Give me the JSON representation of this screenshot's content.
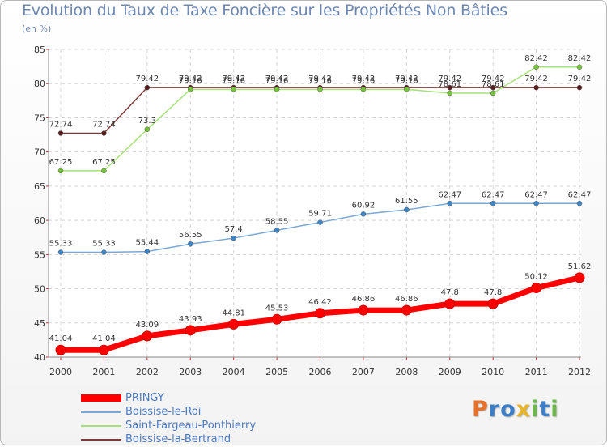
{
  "chart_data": {
    "type": "line",
    "title": "Evolution du Taux de Taxe Foncière sur les Propriétés Non Bâties",
    "ylabel": "(en %)",
    "xlabel": "",
    "categories": [
      "2000",
      "2001",
      "2002",
      "2003",
      "2004",
      "2005",
      "2006",
      "2007",
      "2008",
      "2009",
      "2010",
      "2011",
      "2012"
    ],
    "ylim": [
      40,
      85
    ],
    "yticks": [
      "40",
      "45",
      "50",
      "55",
      "60",
      "65",
      "70",
      "75",
      "80",
      "85"
    ],
    "grid": true,
    "legend_position": "bottom-left",
    "series": [
      {
        "name": "PRINGY",
        "color": "#ff0000",
        "marker_color": "#ff0000",
        "emphasis": true,
        "values": [
          41.04,
          41.04,
          43.09,
          43.93,
          44.81,
          45.53,
          46.42,
          46.86,
          46.86,
          47.8,
          47.8,
          50.12,
          51.62
        ],
        "labels": [
          "41.04",
          "41.04",
          "43.09",
          "43.93",
          "44.81",
          "45.53",
          "46.42",
          "46.86",
          "46.86",
          "47.8",
          "47.8",
          "50.12",
          "51.62"
        ]
      },
      {
        "name": "Boissise-le-Roi",
        "color": "#7aa7d4",
        "marker_color": "#3f86c7",
        "emphasis": false,
        "values": [
          55.33,
          55.33,
          55.44,
          56.55,
          57.4,
          58.55,
          59.71,
          60.92,
          61.55,
          62.47,
          62.47,
          62.47,
          62.47
        ],
        "labels": [
          "55.33",
          "55.33",
          "55.44",
          "56.55",
          "57.4",
          "58.55",
          "59.71",
          "60.92",
          "61.55",
          "62.47",
          "62.47",
          "62.47",
          "62.47"
        ]
      },
      {
        "name": "Saint-Fargeau-Ponthierry",
        "color": "#a6e07a",
        "marker_color": "#76c43a",
        "emphasis": false,
        "values": [
          67.25,
          67.25,
          73.3,
          79.16,
          79.16,
          79.16,
          79.16,
          79.16,
          79.16,
          78.61,
          78.61,
          82.42,
          82.42
        ],
        "labels": [
          "67.25",
          "67.25",
          "73.3",
          "79.16",
          "79.16",
          "79.16",
          "79.16",
          "79.16",
          "79.16",
          "78.61",
          "78.61",
          "82.42",
          "82.42"
        ]
      },
      {
        "name": "Boissise-la-Bertrand",
        "color": "#7a3a3a",
        "marker_color": "#5a1e1e",
        "emphasis": false,
        "values": [
          72.74,
          72.74,
          79.42,
          79.42,
          79.42,
          79.42,
          79.42,
          79.42,
          79.42,
          79.42,
          79.42,
          79.42,
          79.42
        ],
        "labels": [
          "72.74",
          "72.74",
          "79.42",
          "79.42",
          "79.42",
          "79.42",
          "79.42",
          "79.42",
          "79.42",
          "79.42",
          "79.42",
          "79.42",
          "79.42"
        ]
      }
    ]
  },
  "logo": {
    "letters": [
      "P",
      "r",
      "o",
      "x",
      "i",
      "t",
      "i"
    ],
    "colors": [
      "#e8712a",
      "#3c7fc8",
      "#3c7fc8",
      "#e8b52a",
      "#6ab84a",
      "#3c7fc8",
      "#6ab84a"
    ]
  }
}
